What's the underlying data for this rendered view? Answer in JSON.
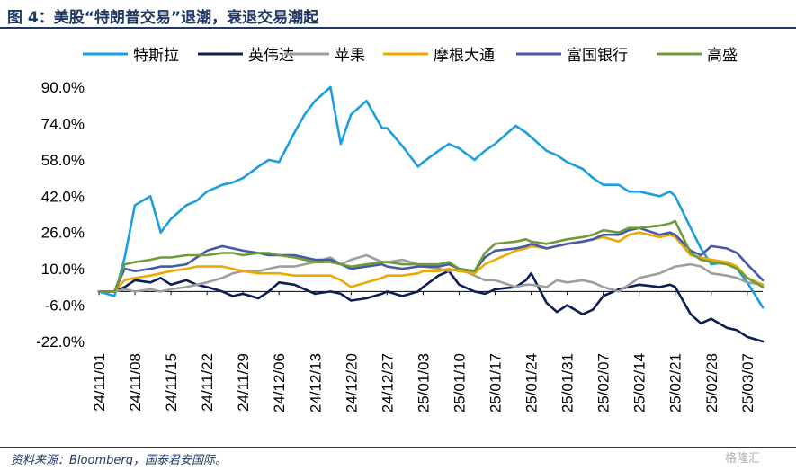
{
  "title": "图 4：美股“特朗普交易”退潮，衰退交易潮起",
  "source": "资料来源：Bloomberg，国泰君安国际。",
  "watermark": "格隆汇",
  "chart_data": {
    "type": "line",
    "title": "",
    "xlabel": "",
    "ylabel": "",
    "ylim": [
      -22,
      90
    ],
    "yticks": [
      "90.0%",
      "74.0%",
      "58.0%",
      "42.0%",
      "26.0%",
      "10.0%",
      "-6.0%",
      "-22.0%"
    ],
    "ytick_values": [
      90,
      74,
      58,
      42,
      26,
      10,
      -6,
      -22
    ],
    "xticks": [
      "24/11/01",
      "24/11/08",
      "24/11/15",
      "24/11/22",
      "24/11/29",
      "24/12/06",
      "24/12/13",
      "24/12/20",
      "24/12/27",
      "25/01/03",
      "25/01/10",
      "25/01/17",
      "25/01/24",
      "25/01/31",
      "25/02/07",
      "25/02/14",
      "25/02/21",
      "25/02/28",
      "25/03/07"
    ],
    "x": [
      "24/11/01",
      "24/11/04",
      "24/11/06",
      "24/11/08",
      "24/11/11",
      "24/11/13",
      "24/11/15",
      "24/11/18",
      "24/11/20",
      "24/11/22",
      "24/11/25",
      "24/11/27",
      "24/11/29",
      "24/12/02",
      "24/12/04",
      "24/12/06",
      "24/12/09",
      "24/12/11",
      "24/12/13",
      "24/12/16",
      "24/12/18",
      "24/12/20",
      "24/12/23",
      "24/12/26",
      "24/12/27",
      "24/12/30",
      "25/01/02",
      "25/01/03",
      "25/01/06",
      "25/01/08",
      "25/01/10",
      "25/01/13",
      "25/01/15",
      "25/01/17",
      "25/01/21",
      "25/01/23",
      "25/01/24",
      "25/01/27",
      "25/01/29",
      "25/01/31",
      "25/02/03",
      "25/02/05",
      "25/02/07",
      "25/02/10",
      "25/02/12",
      "25/02/14",
      "25/02/18",
      "25/02/20",
      "25/02/21",
      "25/02/24",
      "25/02/26",
      "25/02/28",
      "25/03/03",
      "25/03/05",
      "25/03/07",
      "25/03/10"
    ],
    "series": [
      {
        "name": "特斯拉",
        "color": "#1a9ee0",
        "values": [
          0,
          -2,
          15,
          38,
          42,
          26,
          32,
          38,
          40,
          44,
          47,
          48,
          50,
          55,
          58,
          57,
          70,
          78,
          84,
          90,
          65,
          78,
          84,
          72,
          72,
          64,
          55,
          57,
          62,
          65,
          63,
          58,
          62,
          65,
          73,
          70,
          68,
          62,
          60,
          57,
          54,
          50,
          47,
          47,
          44,
          44,
          42,
          44,
          42,
          28,
          19,
          12,
          13,
          10,
          4,
          -7
        ]
      },
      {
        "name": "英伟达",
        "color": "#0d1f52",
        "values": [
          0,
          0,
          2,
          5,
          4,
          6,
          3,
          5,
          3,
          2,
          0,
          -2,
          -1,
          -3,
          0,
          4,
          3,
          1,
          -1,
          0,
          -1,
          -4,
          -3,
          -1,
          0,
          -2,
          0,
          2,
          7,
          9,
          3,
          0,
          -1,
          1,
          2,
          5,
          8,
          -5,
          -9,
          -6,
          -10,
          -8,
          -2,
          1,
          2,
          3,
          2,
          3,
          2,
          -10,
          -14,
          -12,
          -16,
          -17,
          -20,
          -22
        ]
      },
      {
        "name": "苹果",
        "color": "#9e9e9e",
        "values": [
          0,
          0,
          1,
          0,
          1,
          0,
          1,
          2,
          3,
          4,
          6,
          8,
          9,
          9,
          10,
          11,
          11,
          12,
          13,
          15,
          12,
          14,
          16,
          13,
          13,
          14,
          12,
          11,
          10,
          9,
          10,
          7,
          5,
          5,
          2,
          3,
          3,
          2,
          5,
          4,
          5,
          4,
          2,
          0,
          3,
          6,
          8,
          10,
          11,
          12,
          11,
          8,
          7,
          6,
          4,
          3
        ]
      },
      {
        "name": "摩根大通",
        "color": "#f0a800",
        "values": [
          0,
          0,
          5,
          6,
          7,
          8,
          9,
          10,
          11,
          11,
          11,
          10,
          9,
          8,
          8,
          8,
          7,
          7,
          7,
          7,
          5,
          2,
          4,
          6,
          7,
          7,
          8,
          9,
          9,
          10,
          9,
          8,
          12,
          14,
          18,
          19,
          20,
          19,
          20,
          21,
          22,
          23,
          24,
          22,
          25,
          26,
          24,
          25,
          24,
          16,
          15,
          14,
          13,
          11,
          6,
          3
        ]
      },
      {
        "name": "富国银行",
        "color": "#4559a8",
        "values": [
          0,
          0,
          10,
          9,
          10,
          11,
          11,
          12,
          15,
          18,
          20,
          19,
          18,
          17,
          16,
          16,
          16,
          15,
          14,
          14,
          12,
          10,
          11,
          12,
          11,
          10,
          11,
          11,
          11,
          12,
          10,
          9,
          15,
          18,
          19,
          20,
          21,
          19,
          20,
          21,
          22,
          23,
          25,
          25,
          27,
          28,
          25,
          26,
          25,
          18,
          16,
          20,
          19,
          17,
          12,
          5
        ]
      },
      {
        "name": "高盛",
        "color": "#6e9b3a",
        "values": [
          0,
          0,
          12,
          13,
          14,
          15,
          15,
          16,
          16,
          16,
          17,
          17,
          16,
          17,
          17,
          16,
          15,
          14,
          13,
          13,
          12,
          11,
          12,
          13,
          13,
          12,
          12,
          12,
          12,
          13,
          10,
          9,
          17,
          21,
          22,
          23,
          22,
          21,
          22,
          23,
          24,
          25,
          27,
          26,
          28,
          28,
          29,
          30,
          31,
          17,
          14,
          13,
          12,
          10,
          6,
          2
        ]
      }
    ],
    "grid": false,
    "legend_position": "top"
  }
}
